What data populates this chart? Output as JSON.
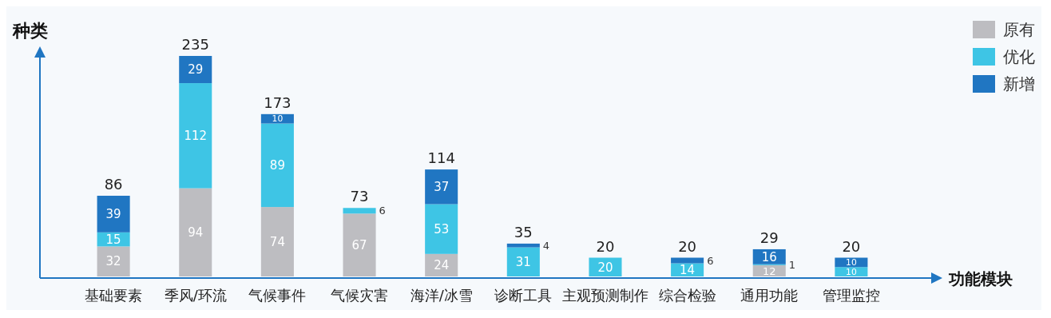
{
  "chart_data": {
    "type": "bar",
    "stacked": true,
    "ylabel": "种类",
    "xlabel": "功能模块",
    "categories": [
      "基础要素",
      "季风/环流",
      "气候事件",
      "气候灾害",
      "海洋/冰雪",
      "诊断工具",
      "主观预测制作",
      "综合检验",
      "通用功能",
      "管理监控"
    ],
    "series": [
      {
        "name": "原有",
        "color": "#bdbdc1",
        "values": [
          32,
          94,
          74,
          67,
          24,
          null,
          null,
          null,
          12,
          null
        ]
      },
      {
        "name": "优化",
        "color": "#3ec5e5",
        "values": [
          15,
          112,
          89,
          6,
          53,
          31,
          20,
          14,
          1,
          10
        ]
      },
      {
        "name": "新增",
        "color": "#2076c2",
        "values": [
          39,
          29,
          10,
          null,
          37,
          4,
          null,
          6,
          16,
          10
        ]
      }
    ],
    "totals": [
      "86",
      "235",
      "173",
      "73",
      "114",
      "35",
      "20",
      "20",
      "29",
      "20"
    ],
    "data_labels": true,
    "legend": "top right"
  }
}
